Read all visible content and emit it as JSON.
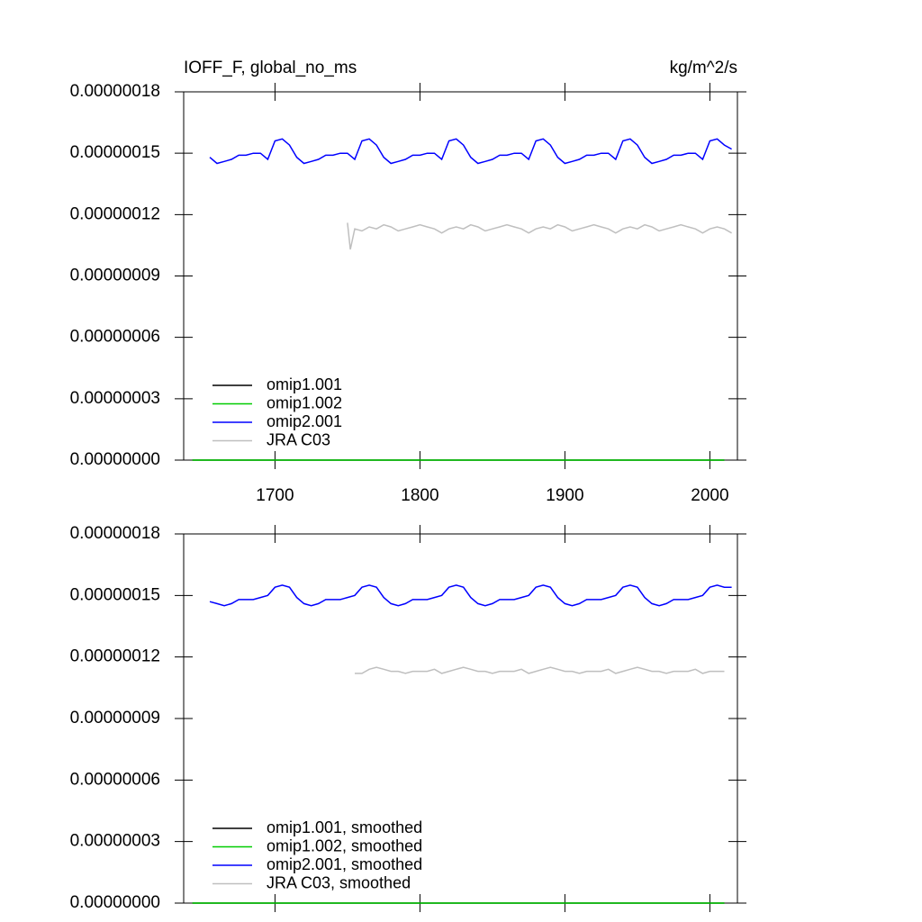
{
  "chart_data": [
    {
      "type": "line",
      "title": "IOFF_F, global_no_ms",
      "units": "kg/m^2/s",
      "xlim": [
        1637,
        2019
      ],
      "xticks": [
        1700,
        1800,
        1900,
        2000
      ],
      "ylim": [
        0,
        1.8e-07
      ],
      "yticks": [
        {
          "value": 0,
          "label": "0.00000000"
        },
        {
          "value": 3e-08,
          "label": "0.00000003"
        },
        {
          "value": 6e-08,
          "label": "0.00000006"
        },
        {
          "value": 9e-08,
          "label": "0.00000009"
        },
        {
          "value": 1.2e-07,
          "label": "0.00000012"
        },
        {
          "value": 1.5e-07,
          "label": "0.00000015"
        },
        {
          "value": 1.8e-07,
          "label": "0.00000018"
        }
      ],
      "legend": "lower left",
      "series": [
        {
          "name": "omip1.001",
          "color": "#000000",
          "x": [
            1643,
            2010
          ],
          "values": [
            0,
            0
          ]
        },
        {
          "name": "omip1.002",
          "color": "#00cc00",
          "x": [
            1643,
            2010
          ],
          "values": [
            0,
            0
          ]
        },
        {
          "name": "omip2.001",
          "color": "#0000ff",
          "x": [
            1655,
            1660,
            1665,
            1670,
            1675,
            1680,
            1685,
            1690,
            1695,
            1700,
            1705,
            1710,
            1715,
            1720,
            1725,
            1730,
            1735,
            1740,
            1745,
            1750,
            1755,
            1760,
            1765,
            1770,
            1775,
            1780,
            1785,
            1790,
            1795,
            1800,
            1805,
            1810,
            1815,
            1820,
            1825,
            1830,
            1835,
            1840,
            1845,
            1850,
            1855,
            1860,
            1865,
            1870,
            1875,
            1880,
            1885,
            1890,
            1895,
            1900,
            1905,
            1910,
            1915,
            1920,
            1925,
            1930,
            1935,
            1940,
            1945,
            1950,
            1955,
            1960,
            1965,
            1970,
            1975,
            1980,
            1985,
            1990,
            1995,
            2000,
            2005,
            2010,
            2015
          ],
          "values": [
            1.48e-07,
            1.45e-07,
            1.46e-07,
            1.47e-07,
            1.49e-07,
            1.49e-07,
            1.5e-07,
            1.5e-07,
            1.47e-07,
            1.56e-07,
            1.57e-07,
            1.54e-07,
            1.48e-07,
            1.45e-07,
            1.46e-07,
            1.47e-07,
            1.49e-07,
            1.49e-07,
            1.5e-07,
            1.5e-07,
            1.47e-07,
            1.56e-07,
            1.57e-07,
            1.54e-07,
            1.48e-07,
            1.45e-07,
            1.46e-07,
            1.47e-07,
            1.49e-07,
            1.49e-07,
            1.5e-07,
            1.5e-07,
            1.47e-07,
            1.56e-07,
            1.57e-07,
            1.54e-07,
            1.48e-07,
            1.45e-07,
            1.46e-07,
            1.47e-07,
            1.49e-07,
            1.49e-07,
            1.5e-07,
            1.5e-07,
            1.47e-07,
            1.56e-07,
            1.57e-07,
            1.54e-07,
            1.48e-07,
            1.45e-07,
            1.46e-07,
            1.47e-07,
            1.49e-07,
            1.49e-07,
            1.5e-07,
            1.5e-07,
            1.47e-07,
            1.56e-07,
            1.57e-07,
            1.54e-07,
            1.48e-07,
            1.45e-07,
            1.46e-07,
            1.47e-07,
            1.49e-07,
            1.49e-07,
            1.5e-07,
            1.5e-07,
            1.47e-07,
            1.56e-07,
            1.57e-07,
            1.54e-07,
            1.52e-07
          ]
        },
        {
          "name": "JRA C03",
          "color": "#bfbfbf",
          "x": [
            1750,
            1752,
            1755,
            1760,
            1765,
            1770,
            1775,
            1780,
            1785,
            1790,
            1795,
            1800,
            1805,
            1810,
            1815,
            1820,
            1825,
            1830,
            1835,
            1840,
            1845,
            1850,
            1855,
            1860,
            1865,
            1870,
            1875,
            1880,
            1885,
            1890,
            1895,
            1900,
            1905,
            1910,
            1915,
            1920,
            1925,
            1930,
            1935,
            1940,
            1945,
            1950,
            1955,
            1960,
            1965,
            1970,
            1975,
            1980,
            1985,
            1990,
            1995,
            2000,
            2005,
            2010,
            2015
          ],
          "values": [
            1.16e-07,
            1.03e-07,
            1.13e-07,
            1.12e-07,
            1.14e-07,
            1.13e-07,
            1.15e-07,
            1.14e-07,
            1.12e-07,
            1.13e-07,
            1.14e-07,
            1.15e-07,
            1.14e-07,
            1.13e-07,
            1.11e-07,
            1.13e-07,
            1.14e-07,
            1.13e-07,
            1.15e-07,
            1.14e-07,
            1.12e-07,
            1.13e-07,
            1.14e-07,
            1.15e-07,
            1.14e-07,
            1.13e-07,
            1.11e-07,
            1.13e-07,
            1.14e-07,
            1.13e-07,
            1.15e-07,
            1.14e-07,
            1.12e-07,
            1.13e-07,
            1.14e-07,
            1.15e-07,
            1.14e-07,
            1.13e-07,
            1.11e-07,
            1.13e-07,
            1.14e-07,
            1.13e-07,
            1.15e-07,
            1.14e-07,
            1.12e-07,
            1.13e-07,
            1.14e-07,
            1.15e-07,
            1.14e-07,
            1.13e-07,
            1.11e-07,
            1.13e-07,
            1.14e-07,
            1.13e-07,
            1.11e-07
          ]
        }
      ]
    },
    {
      "type": "line",
      "xlim": [
        1637,
        2019
      ],
      "xticks": [
        1700,
        1800,
        1900,
        2000
      ],
      "ylim": [
        0,
        1.8e-07
      ],
      "yticks": [
        {
          "value": 0,
          "label": "0.00000000"
        },
        {
          "value": 3e-08,
          "label": "0.00000003"
        },
        {
          "value": 6e-08,
          "label": "0.00000006"
        },
        {
          "value": 9e-08,
          "label": "0.00000009"
        },
        {
          "value": 1.2e-07,
          "label": "0.00000012"
        },
        {
          "value": 1.5e-07,
          "label": "0.00000015"
        },
        {
          "value": 1.8e-07,
          "label": "0.00000018"
        }
      ],
      "legend": "lower left",
      "series": [
        {
          "name": "omip1.001, smoothed",
          "color": "#000000",
          "x": [
            1643,
            2010
          ],
          "values": [
            0,
            0
          ]
        },
        {
          "name": "omip1.002, smoothed",
          "color": "#00cc00",
          "x": [
            1643,
            2010
          ],
          "values": [
            0,
            0
          ]
        },
        {
          "name": "omip2.001, smoothed",
          "color": "#0000ff",
          "x": [
            1655,
            1660,
            1665,
            1670,
            1675,
            1680,
            1685,
            1690,
            1695,
            1700,
            1705,
            1710,
            1715,
            1720,
            1725,
            1730,
            1735,
            1740,
            1745,
            1750,
            1755,
            1760,
            1765,
            1770,
            1775,
            1780,
            1785,
            1790,
            1795,
            1800,
            1805,
            1810,
            1815,
            1820,
            1825,
            1830,
            1835,
            1840,
            1845,
            1850,
            1855,
            1860,
            1865,
            1870,
            1875,
            1880,
            1885,
            1890,
            1895,
            1900,
            1905,
            1910,
            1915,
            1920,
            1925,
            1930,
            1935,
            1940,
            1945,
            1950,
            1955,
            1960,
            1965,
            1970,
            1975,
            1980,
            1985,
            1990,
            1995,
            2000,
            2005,
            2010,
            2015
          ],
          "values": [
            1.47e-07,
            1.46e-07,
            1.45e-07,
            1.46e-07,
            1.48e-07,
            1.48e-07,
            1.48e-07,
            1.49e-07,
            1.5e-07,
            1.54e-07,
            1.55e-07,
            1.54e-07,
            1.49e-07,
            1.46e-07,
            1.45e-07,
            1.46e-07,
            1.48e-07,
            1.48e-07,
            1.48e-07,
            1.49e-07,
            1.5e-07,
            1.54e-07,
            1.55e-07,
            1.54e-07,
            1.49e-07,
            1.46e-07,
            1.45e-07,
            1.46e-07,
            1.48e-07,
            1.48e-07,
            1.48e-07,
            1.49e-07,
            1.5e-07,
            1.54e-07,
            1.55e-07,
            1.54e-07,
            1.49e-07,
            1.46e-07,
            1.45e-07,
            1.46e-07,
            1.48e-07,
            1.48e-07,
            1.48e-07,
            1.49e-07,
            1.5e-07,
            1.54e-07,
            1.55e-07,
            1.54e-07,
            1.49e-07,
            1.46e-07,
            1.45e-07,
            1.46e-07,
            1.48e-07,
            1.48e-07,
            1.48e-07,
            1.49e-07,
            1.5e-07,
            1.54e-07,
            1.55e-07,
            1.54e-07,
            1.49e-07,
            1.46e-07,
            1.45e-07,
            1.46e-07,
            1.48e-07,
            1.48e-07,
            1.48e-07,
            1.49e-07,
            1.5e-07,
            1.54e-07,
            1.55e-07,
            1.54e-07,
            1.54e-07
          ]
        },
        {
          "name": "JRA C03, smoothed",
          "color": "#bfbfbf",
          "x": [
            1755,
            1760,
            1765,
            1770,
            1775,
            1780,
            1785,
            1790,
            1795,
            1800,
            1805,
            1810,
            1815,
            1820,
            1825,
            1830,
            1835,
            1840,
            1845,
            1850,
            1855,
            1860,
            1865,
            1870,
            1875,
            1880,
            1885,
            1890,
            1895,
            1900,
            1905,
            1910,
            1915,
            1920,
            1925,
            1930,
            1935,
            1940,
            1945,
            1950,
            1955,
            1960,
            1965,
            1970,
            1975,
            1980,
            1985,
            1990,
            1995,
            2000,
            2005,
            2010
          ],
          "values": [
            1.12e-07,
            1.12e-07,
            1.14e-07,
            1.15e-07,
            1.14e-07,
            1.13e-07,
            1.13e-07,
            1.12e-07,
            1.13e-07,
            1.13e-07,
            1.13e-07,
            1.14e-07,
            1.12e-07,
            1.13e-07,
            1.14e-07,
            1.15e-07,
            1.14e-07,
            1.13e-07,
            1.13e-07,
            1.12e-07,
            1.13e-07,
            1.13e-07,
            1.13e-07,
            1.14e-07,
            1.12e-07,
            1.13e-07,
            1.14e-07,
            1.15e-07,
            1.14e-07,
            1.13e-07,
            1.13e-07,
            1.12e-07,
            1.13e-07,
            1.13e-07,
            1.13e-07,
            1.14e-07,
            1.12e-07,
            1.13e-07,
            1.14e-07,
            1.15e-07,
            1.14e-07,
            1.13e-07,
            1.13e-07,
            1.12e-07,
            1.13e-07,
            1.13e-07,
            1.13e-07,
            1.14e-07,
            1.12e-07,
            1.13e-07,
            1.13e-07,
            1.13e-07
          ]
        }
      ]
    }
  ]
}
